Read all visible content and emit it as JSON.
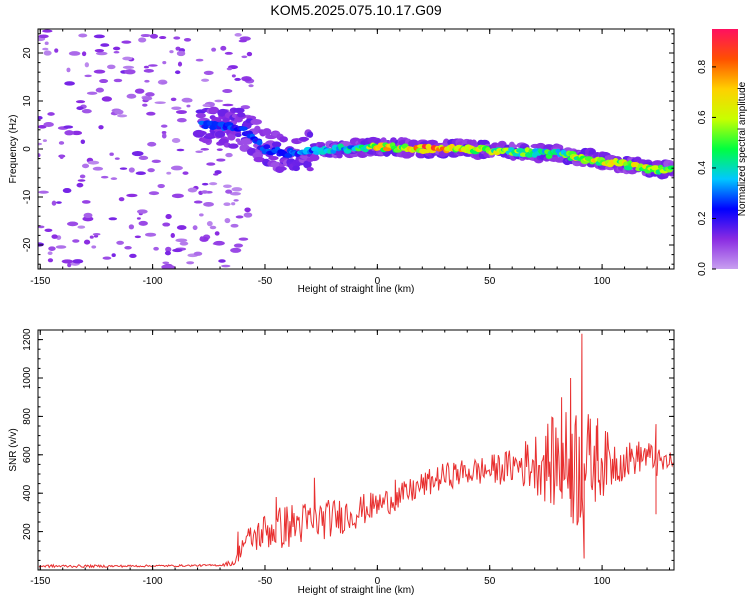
{
  "title": "KOM5.2025.075.10.17.G09",
  "colors": {
    "snr_line": "#e83030",
    "axes": "#000000"
  },
  "chart_data": [
    {
      "type": "heatmap",
      "title": "KOM5.2025.075.10.17.G09",
      "xlabel": "Height of straight line (km)",
      "ylabel": "Frequency (Hz)",
      "xlim": [
        -151,
        132
      ],
      "ylim": [
        -25,
        25
      ],
      "x_ticks": [
        -150,
        -100,
        -50,
        0,
        50,
        100
      ],
      "y_ticks": [
        -20,
        -10,
        0,
        10,
        20
      ],
      "colorbar": {
        "label": "Normalized spectral amplitude",
        "range": [
          0,
          0.95
        ],
        "ticks": [
          "0.0",
          "0.2",
          "0.4",
          "0.6",
          "0.8"
        ],
        "colormap": [
          "#c8a0f0",
          "#8a2be2",
          "#0000ff",
          "#00c8ff",
          "#00ff40",
          "#c8ff00",
          "#ffd000",
          "#ff5000",
          "#ff1060"
        ]
      },
      "ridge": {
        "description_points": [
          {
            "x": -70,
            "y": 5
          },
          {
            "x": -60,
            "y": 4
          },
          {
            "x": -50,
            "y": 0
          },
          {
            "x": -40,
            "y": -1
          },
          {
            "x": -20,
            "y": 0
          },
          {
            "x": 0,
            "y": 0.5
          },
          {
            "x": 20,
            "y": 0
          },
          {
            "x": 40,
            "y": 0
          },
          {
            "x": 60,
            "y": -0.5
          },
          {
            "x": 80,
            "y": -1
          },
          {
            "x": 100,
            "y": -2.5
          },
          {
            "x": 120,
            "y": -4
          },
          {
            "x": 131,
            "y": -4.5
          }
        ],
        "amplitude": [
          {
            "x": -70,
            "a": 0.3
          },
          {
            "x": -50,
            "a": 0.3
          },
          {
            "x": -30,
            "a": 0.35
          },
          {
            "x": -10,
            "a": 0.45
          },
          {
            "x": 0,
            "a": 0.8
          },
          {
            "x": 10,
            "a": 0.7
          },
          {
            "x": 20,
            "a": 0.9
          },
          {
            "x": 40,
            "a": 0.75
          },
          {
            "x": 60,
            "a": 0.6
          },
          {
            "x": 80,
            "a": 0.5
          },
          {
            "x": 90,
            "a": 0.7
          },
          {
            "x": 110,
            "a": 0.7
          },
          {
            "x": 131,
            "a": 0.6
          }
        ]
      }
    },
    {
      "type": "line",
      "xlabel": "Height of straight line (km)",
      "ylabel": "SNR (v/v)",
      "xlim": [
        -151,
        132
      ],
      "ylim": [
        0,
        1250
      ],
      "x_ticks": [
        -150,
        -100,
        -50,
        0,
        50,
        100
      ],
      "y_ticks": [
        200,
        400,
        600,
        800,
        1000,
        1200
      ],
      "series": [
        {
          "envelope": {
            "x": [
              -150,
              -120,
              -90,
              -70,
              -63,
              -60,
              -50,
              -40,
              -30,
              -20,
              -10,
              0,
              10,
              20,
              30,
              40,
              50,
              60,
              70,
              80,
              85,
              90,
              95,
              100,
              110,
              120,
              125,
              131
            ],
            "mean": [
              20,
              20,
              22,
              25,
              40,
              140,
              200,
              230,
              250,
              270,
              300,
              340,
              380,
              440,
              490,
              510,
              520,
              540,
              560,
              560,
              550,
              550,
              560,
              560,
              570,
              600,
              550,
              570
            ],
            "amp": [
              8,
              6,
              5,
              5,
              20,
              60,
              100,
              120,
              110,
              100,
              90,
              70,
              70,
              70,
              70,
              70,
              80,
              90,
              160,
              260,
              300,
              380,
              240,
              180,
              100,
              80,
              80,
              40
            ]
          },
          "peaks": [
            {
              "x": -62,
              "y": 200
            },
            {
              "x": -45,
              "y": 380
            },
            {
              "x": -28,
              "y": 480
            },
            {
              "x": 8,
              "y": 470
            },
            {
              "x": 82,
              "y": 900
            },
            {
              "x": 86,
              "y": 1000
            },
            {
              "x": 91,
              "y": 1230
            },
            {
              "x": 92,
              "y": 60
            },
            {
              "x": 98,
              "y": 790
            },
            {
              "x": 124,
              "y": 760
            },
            {
              "x": 124,
              "y": 290
            }
          ]
        }
      ]
    }
  ]
}
